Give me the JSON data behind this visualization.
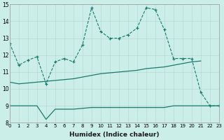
{
  "xlabel": "Humidex (Indice chaleur)",
  "ylabel": "",
  "background_color": "#cceee8",
  "line_color": "#1a7a6e",
  "grid_color": "#b8d8d4",
  "xlim": [
    0,
    23
  ],
  "ylim": [
    8,
    15
  ],
  "yticks": [
    8,
    9,
    10,
    11,
    12,
    13,
    14,
    15
  ],
  "xticks": [
    0,
    1,
    2,
    3,
    4,
    5,
    6,
    7,
    8,
    9,
    10,
    11,
    12,
    13,
    14,
    15,
    16,
    17,
    18,
    19,
    20,
    21,
    22,
    23
  ],
  "series1_x": [
    0,
    1,
    2,
    3,
    4,
    5,
    6,
    7,
    8,
    9,
    10,
    11,
    12,
    13,
    14,
    15,
    16,
    17,
    18,
    19,
    20,
    21,
    22,
    23
  ],
  "series1_y": [
    12.7,
    11.4,
    11.7,
    11.9,
    10.3,
    11.6,
    11.8,
    11.6,
    12.6,
    14.8,
    13.4,
    13.0,
    13.0,
    13.2,
    13.6,
    14.8,
    14.7,
    13.5,
    11.8,
    11.8,
    11.8,
    9.8,
    9.0,
    9.0
  ],
  "series2_x": [
    0,
    1,
    2,
    3,
    4,
    5,
    6,
    7,
    8,
    9,
    10,
    11,
    12,
    13,
    14,
    15,
    16,
    17,
    18,
    19,
    20,
    21
  ],
  "series2_y": [
    10.4,
    10.3,
    10.35,
    10.4,
    10.45,
    10.5,
    10.55,
    10.6,
    10.7,
    10.8,
    10.9,
    10.95,
    11.0,
    11.05,
    11.1,
    11.2,
    11.25,
    11.3,
    11.4,
    11.5,
    11.6,
    11.65
  ],
  "series3_x": [
    0,
    1,
    2,
    3,
    4,
    5,
    6,
    7,
    8,
    9,
    10,
    11,
    12,
    13,
    14,
    15,
    16,
    17,
    18,
    19,
    20,
    21,
    22,
    23
  ],
  "series3_y": [
    9.0,
    9.0,
    9.0,
    9.0,
    8.2,
    8.8,
    8.8,
    8.8,
    8.85,
    8.9,
    8.9,
    8.9,
    8.9,
    8.9,
    8.9,
    8.9,
    8.9,
    8.9,
    9.0,
    9.0,
    9.0,
    9.0,
    9.0,
    9.0
  ]
}
